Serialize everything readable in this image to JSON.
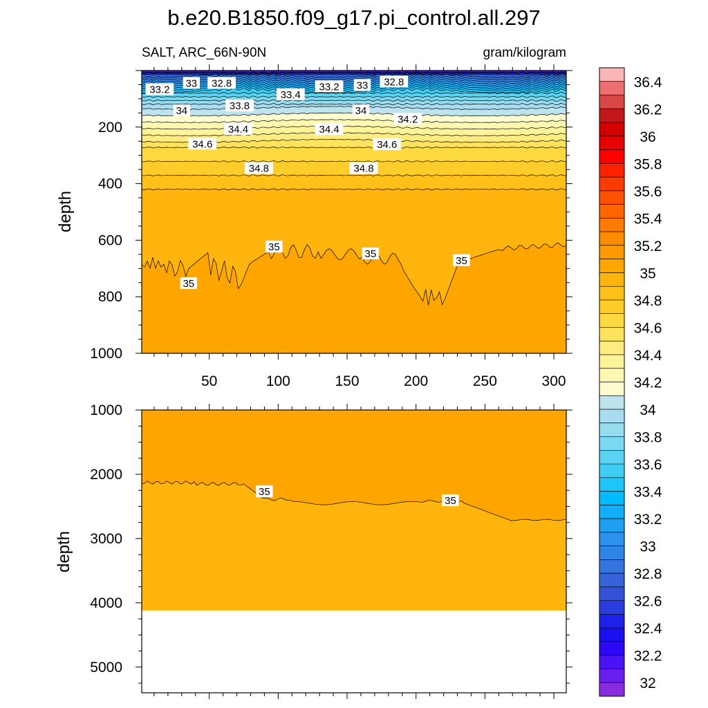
{
  "chart_data": {
    "type": "heatmap",
    "title": "b.e20.B1850.f09_g17.pi_control.all.297",
    "left_subtitle": "SALT, ARC_66N-90N",
    "right_subtitle": "gram/kilogram",
    "ylabel": "depth",
    "colorbar": {
      "levels": [
        32.0,
        32.1,
        32.2,
        32.3,
        32.4,
        32.5,
        32.6,
        32.7,
        32.8,
        32.9,
        33.0,
        33.1,
        33.2,
        33.3,
        33.4,
        33.5,
        33.6,
        33.7,
        33.8,
        33.9,
        34.0,
        34.1,
        34.2,
        34.3,
        34.4,
        34.5,
        34.6,
        34.7,
        34.8,
        34.9,
        35.0,
        35.1,
        35.2,
        35.3,
        35.4,
        35.5,
        35.6,
        35.7,
        35.8,
        35.9,
        36.0,
        36.1,
        36.2,
        36.3,
        36.4
      ],
      "tick_labels": [
        "32",
        "32.2",
        "32.4",
        "32.6",
        "32.8",
        "33",
        "33.2",
        "33.4",
        "33.6",
        "33.8",
        "34",
        "34.2",
        "34.4",
        "34.6",
        "34.8",
        "35",
        "35.2",
        "35.4",
        "35.6",
        "35.8",
        "36",
        "36.2",
        "36.4"
      ],
      "colors": [
        "#8a2be2",
        "#6a1ff0",
        "#4b12f5",
        "#2d08f8",
        "#1a0ff0",
        "#1e22e8",
        "#2a3ce0",
        "#3352d8",
        "#3564d8",
        "#3574df",
        "#2f84e8",
        "#2b92ee",
        "#1f9ff4",
        "#10aefb",
        "#00bbff",
        "#1ec5f8",
        "#3fcdf4",
        "#5ad4f2",
        "#78d9f0",
        "#96dcee",
        "#a8dcf0",
        "#bde3ef",
        "#fffcd0",
        "#fff8b0",
        "#fff39a",
        "#ffec80",
        "#ffe35c",
        "#ffd940",
        "#ffcd2a",
        "#ffc01a",
        "#ffb40e",
        "#ffa500",
        "#ff9a00",
        "#ff8c00",
        "#ff7a00",
        "#ff6600",
        "#ff5200",
        "#ff3c00",
        "#ff2200",
        "#ff0000",
        "#e80000",
        "#d20000",
        "#c01818",
        "#d84646",
        "#ec7070",
        "#fcb6b6"
      ]
    },
    "panels": [
      {
        "name": "upper",
        "x_range": [
          1,
          309
        ],
        "x_ticks": [
          50,
          100,
          150,
          200,
          250,
          300
        ],
        "x_tick_labels": [
          "50",
          "100",
          "150",
          "200",
          "250",
          "300"
        ],
        "y_range": [
          0,
          1000
        ],
        "y_ticks": [
          200,
          400,
          600,
          800,
          1000
        ],
        "y_tick_labels": [
          "200",
          "400",
          "600",
          "800",
          "1000"
        ],
        "contour_labels": [
          {
            "text": "33.2",
            "x": 14,
            "y": 67
          },
          {
            "text": "33",
            "x": 37,
            "y": 45
          },
          {
            "text": "32.8",
            "x": 59,
            "y": 45
          },
          {
            "text": "33.4",
            "x": 109,
            "y": 85
          },
          {
            "text": "33.2",
            "x": 137,
            "y": 57
          },
          {
            "text": "33",
            "x": 161,
            "y": 52
          },
          {
            "text": "32.8",
            "x": 184,
            "y": 40
          },
          {
            "text": "33.8",
            "x": 72,
            "y": 125
          },
          {
            "text": "34",
            "x": 30,
            "y": 142
          },
          {
            "text": "34",
            "x": 160,
            "y": 142
          },
          {
            "text": "34.2",
            "x": 194,
            "y": 172
          },
          {
            "text": "34.4",
            "x": 71,
            "y": 208
          },
          {
            "text": "34.4",
            "x": 137,
            "y": 208
          },
          {
            "text": "34.6",
            "x": 45,
            "y": 260
          },
          {
            "text": "34.6",
            "x": 179,
            "y": 262
          },
          {
            "text": "34.8",
            "x": 86,
            "y": 346
          },
          {
            "text": "34.8",
            "x": 162,
            "y": 346
          },
          {
            "text": "35",
            "x": 97,
            "y": 624
          },
          {
            "text": "35",
            "x": 167,
            "y": 648
          },
          {
            "text": "35",
            "x": 233,
            "y": 672
          },
          {
            "text": "35",
            "x": 35,
            "y": 753
          }
        ]
      },
      {
        "name": "lower",
        "x_range": [
          1,
          309
        ],
        "y_range": [
          1000,
          5400
        ],
        "y_ticks": [
          1000,
          2000,
          3000,
          4000,
          5000
        ],
        "y_tick_labels": [
          "1000",
          "2000",
          "3000",
          "4000",
          "5000"
        ],
        "ocean_floor_depth": 4120,
        "contour_labels": [
          {
            "text": "35",
            "x": 90,
            "y": 2270
          },
          {
            "text": "35",
            "x": 225,
            "y": 2410
          }
        ]
      }
    ]
  }
}
